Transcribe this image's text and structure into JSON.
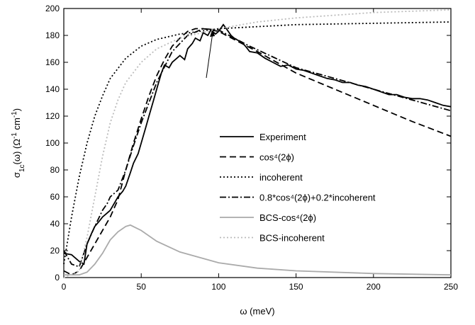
{
  "chart_data": {
    "type": "line",
    "xlabel": "ω (meV)",
    "ylabel": [
      {
        "text": "σ"
      },
      {
        "text": "1c",
        "shift": "sub"
      },
      {
        "text": "(ω) (Ω"
      },
      {
        "text": "-1",
        "shift": "super"
      },
      {
        "text": " cm"
      },
      {
        "text": "-1",
        "shift": "super"
      },
      {
        "text": ")"
      }
    ],
    "xlim": [
      0,
      250
    ],
    "ylim": [
      0,
      200
    ],
    "xticks": [
      0,
      50,
      100,
      150,
      200,
      250
    ],
    "yticks": [
      0,
      20,
      40,
      60,
      80,
      100,
      120,
      140,
      160,
      180,
      200
    ],
    "legend": "right",
    "series": [
      {
        "name": "Experiment",
        "color": "#000000",
        "dash": "solid",
        "x": [
          0,
          5,
          10,
          13,
          15,
          18,
          20,
          23,
          25,
          28,
          30,
          33,
          35,
          38,
          40,
          43,
          45,
          48,
          50,
          53,
          55,
          58,
          60,
          63,
          65,
          68,
          70,
          73,
          75,
          78,
          80,
          83,
          85,
          88,
          90,
          93,
          95,
          98,
          100,
          103,
          105,
          108,
          110,
          113,
          115,
          118,
          120,
          125,
          130,
          135,
          140,
          145,
          150,
          155,
          160,
          165,
          170,
          175,
          180,
          185,
          190,
          195,
          200,
          205,
          210,
          215,
          220,
          225,
          230,
          235,
          240,
          245,
          250
        ],
        "values": [
          18,
          17,
          12,
          10,
          25,
          33,
          38,
          42,
          45,
          48,
          50,
          56,
          60,
          64,
          68,
          78,
          85,
          92,
          100,
          112,
          120,
          132,
          140,
          152,
          158,
          156,
          160,
          163,
          165,
          162,
          170,
          174,
          178,
          176,
          182,
          180,
          184,
          181,
          183,
          188,
          185,
          180,
          178,
          176,
          175,
          171,
          168,
          167,
          163,
          160,
          157,
          158,
          155,
          154,
          152,
          150,
          148,
          147,
          145,
          145,
          143,
          142,
          140,
          138,
          136,
          136,
          134,
          133,
          133,
          132,
          130,
          128,
          127
        ]
      },
      {
        "name": "cos⁴(2ϕ)",
        "color": "#000000",
        "dash": "dashed",
        "x": [
          0,
          5,
          10,
          15,
          20,
          25,
          30,
          35,
          40,
          45,
          50,
          55,
          60,
          65,
          70,
          75,
          80,
          85,
          90,
          100,
          110,
          125,
          150,
          175,
          200,
          225,
          250
        ],
        "values": [
          5,
          2,
          5,
          15,
          25,
          35,
          45,
          58,
          80,
          100,
          118,
          135,
          150,
          162,
          172,
          178,
          183,
          185,
          185,
          183,
          177,
          168,
          152,
          140,
          128,
          116,
          105
        ]
      },
      {
        "name": "incoherent",
        "color": "#000000",
        "dash": "dotted",
        "x": [
          0,
          5,
          10,
          15,
          20,
          25,
          30,
          40,
          50,
          60,
          75,
          100,
          150,
          200,
          250
        ],
        "values": [
          10,
          45,
          75,
          100,
          120,
          135,
          148,
          163,
          172,
          177,
          181,
          185,
          188,
          189,
          190
        ]
      },
      {
        "name": "0.8*cos⁴(2ϕ)+0.2*incoherent",
        "color": "#000000",
        "dash": "dashdot",
        "x": [
          0,
          5,
          10,
          15,
          20,
          25,
          28,
          30,
          35,
          40,
          45,
          50,
          60,
          70,
          80,
          90,
          100,
          120,
          150,
          175,
          200,
          225,
          250
        ],
        "values": [
          20,
          10,
          8,
          25,
          38,
          50,
          55,
          60,
          65,
          80,
          98,
          115,
          145,
          168,
          180,
          185,
          184,
          172,
          156,
          148,
          140,
          132,
          124
        ]
      },
      {
        "name": "BCS-cos⁴(2ϕ)",
        "color": "#aaaaaa",
        "dash": "solid",
        "x": [
          0,
          10,
          15,
          20,
          25,
          30,
          35,
          40,
          43,
          50,
          60,
          75,
          100,
          125,
          150,
          200,
          250
        ],
        "values": [
          2,
          2,
          4,
          10,
          18,
          28,
          34,
          38,
          39,
          35,
          27,
          19,
          11,
          7,
          5,
          3,
          2
        ]
      },
      {
        "name": "BCS-incoherent",
        "color": "#bbbbbb",
        "dash": "dotted",
        "x": [
          0,
          10,
          15,
          20,
          25,
          30,
          35,
          40,
          50,
          60,
          75,
          100,
          125,
          150,
          200,
          250
        ],
        "values": [
          0,
          5,
          30,
          60,
          90,
          115,
          132,
          145,
          160,
          170,
          178,
          185,
          190,
          193,
          197,
          199
        ]
      }
    ]
  }
}
